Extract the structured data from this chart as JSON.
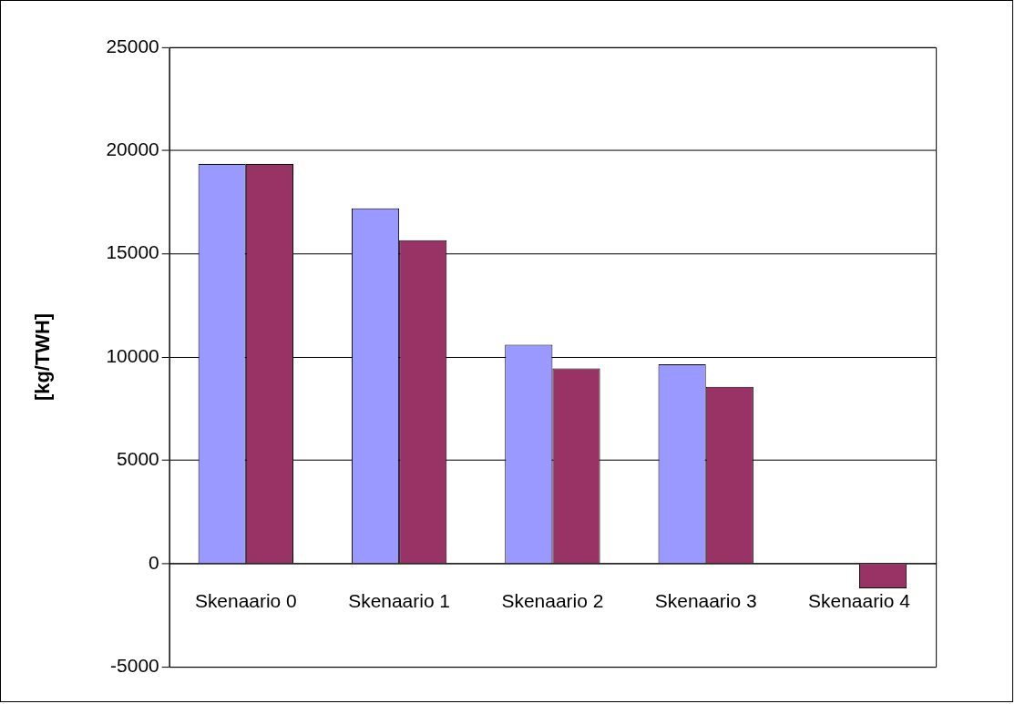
{
  "chart_data": {
    "type": "bar",
    "ylabel": "[kg/TWH]",
    "categories": [
      "Skenaario 0",
      "Skenaario 1",
      "Skenaario 2",
      "Skenaario 3",
      "Skenaario 4"
    ],
    "series": [
      {
        "color": "#9999ff",
        "values": [
          19350,
          17200,
          10600,
          9650,
          null
        ]
      },
      {
        "color": "#993366",
        "values": [
          19350,
          15650,
          9450,
          8550,
          -1200
        ]
      }
    ],
    "ylim": [
      -5000,
      25000
    ],
    "yticks": [
      -5000,
      0,
      5000,
      10000,
      15000,
      20000,
      25000
    ],
    "grid": "y",
    "legend": false
  }
}
